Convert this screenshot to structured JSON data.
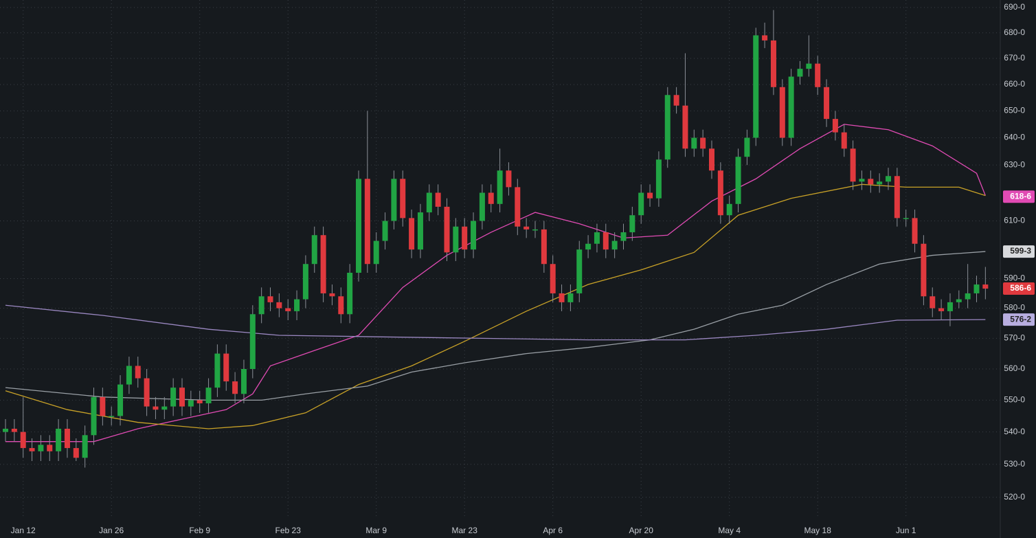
{
  "chart_data": {
    "type": "candlestick",
    "categories": [
      null,
      null,
      "Jan 12",
      null,
      null,
      null,
      null,
      null,
      null,
      null,
      null,
      null,
      "Jan 26",
      null,
      null,
      null,
      null,
      null,
      null,
      null,
      null,
      null,
      "Feb 9",
      null,
      null,
      null,
      null,
      null,
      null,
      null,
      null,
      null,
      "Feb 23",
      null,
      null,
      null,
      null,
      null,
      null,
      null,
      null,
      null,
      "Mar 9",
      null,
      null,
      null,
      null,
      null,
      null,
      null,
      null,
      null,
      "Mar 23",
      null,
      null,
      null,
      null,
      null,
      null,
      null,
      null,
      null,
      "Apr 6",
      null,
      null,
      null,
      null,
      null,
      null,
      null,
      null,
      null,
      "Apr 20",
      null,
      null,
      null,
      null,
      null,
      null,
      null,
      null,
      null,
      "May 4",
      null,
      null,
      null,
      null,
      null,
      null,
      null,
      null,
      null,
      "May 18",
      null,
      null,
      null,
      null,
      null,
      null,
      null,
      null,
      null,
      "Jun 1",
      null,
      null,
      null,
      null,
      null,
      null,
      null,
      null,
      null
    ],
    "open": [
      540,
      541,
      540,
      535,
      534,
      536,
      534,
      541,
      535,
      532,
      539,
      551,
      545,
      545,
      555,
      561,
      557,
      548,
      547,
      548,
      554,
      548,
      550,
      549,
      554,
      565,
      556,
      552,
      560,
      578,
      584,
      582,
      580,
      579,
      583,
      595,
      605,
      585,
      584,
      578,
      592,
      625,
      595,
      603,
      610,
      625,
      611,
      600,
      613,
      620,
      615,
      599,
      608,
      600,
      610,
      620,
      616,
      628,
      622,
      608,
      607,
      607,
      595,
      585,
      582,
      585,
      600,
      602,
      606,
      600,
      603,
      606,
      612,
      620,
      618,
      632,
      656,
      652,
      636,
      640,
      636,
      628,
      612,
      616,
      633,
      640,
      679,
      677,
      659,
      640,
      663,
      666,
      668,
      659,
      647,
      642,
      636,
      624,
      625,
      623,
      624,
      626,
      611,
      611,
      602,
      584,
      580,
      579,
      582,
      583,
      585,
      588
    ],
    "high": [
      544,
      544,
      551,
      538,
      539,
      539,
      544,
      544,
      538,
      542,
      554,
      554,
      548,
      558,
      564,
      564,
      560,
      551,
      551,
      557,
      557,
      553,
      553,
      557,
      568,
      568,
      559,
      563,
      581,
      587,
      587,
      585,
      583,
      586,
      598,
      608,
      608,
      588,
      587,
      595,
      628,
      650,
      606,
      613,
      628,
      628,
      614,
      616,
      623,
      623,
      618,
      611,
      611,
      613,
      623,
      623,
      636,
      631,
      625,
      611,
      610,
      610,
      598,
      588,
      588,
      603,
      605,
      609,
      609,
      606,
      609,
      615,
      623,
      623,
      635,
      659,
      659,
      672,
      643,
      643,
      639,
      631,
      619,
      636,
      643,
      682,
      684,
      689,
      662,
      666,
      669,
      679,
      671,
      662,
      650,
      645,
      639,
      628,
      628,
      627,
      629,
      629,
      614,
      614,
      605,
      587,
      583,
      585,
      586,
      595,
      591,
      594
    ],
    "low": [
      537,
      537,
      532,
      531,
      531,
      531,
      531,
      532,
      531,
      529,
      536,
      542,
      542,
      542,
      552,
      554,
      545,
      544,
      544,
      545,
      545,
      545,
      546,
      546,
      551,
      553,
      549,
      549,
      557,
      575,
      579,
      577,
      576,
      576,
      580,
      592,
      582,
      581,
      575,
      575,
      589,
      592,
      592,
      600,
      607,
      608,
      597,
      597,
      610,
      612,
      596,
      596,
      597,
      597,
      607,
      613,
      613,
      619,
      605,
      604,
      604,
      592,
      582,
      579,
      579,
      582,
      597,
      599,
      597,
      597,
      600,
      603,
      609,
      615,
      615,
      629,
      649,
      633,
      633,
      633,
      625,
      609,
      609,
      613,
      630,
      637,
      674,
      656,
      637,
      637,
      660,
      663,
      656,
      644,
      639,
      633,
      621,
      621,
      620,
      620,
      621,
      608,
      608,
      599,
      581,
      577,
      576,
      574,
      580,
      580,
      582,
      583
    ],
    "close": [
      541,
      540,
      535,
      534,
      536,
      534,
      541,
      535,
      532,
      539,
      551,
      545,
      545,
      555,
      561,
      557,
      548,
      547,
      548,
      554,
      548,
      550,
      549,
      554,
      565,
      556,
      552,
      560,
      578,
      584,
      582,
      580,
      579,
      583,
      595,
      605,
      585,
      584,
      578,
      592,
      625,
      595,
      603,
      610,
      625,
      611,
      600,
      613,
      620,
      615,
      599,
      608,
      600,
      610,
      620,
      616,
      628,
      622,
      608,
      607,
      607,
      595,
      585,
      582,
      585,
      600,
      602,
      606,
      600,
      603,
      606,
      612,
      620,
      618,
      632,
      656,
      652,
      636,
      640,
      636,
      628,
      612,
      616,
      633,
      640,
      679,
      677,
      659,
      640,
      663,
      666,
      668,
      659,
      647,
      642,
      636,
      624,
      625,
      623,
      624,
      626,
      611,
      611,
      602,
      584,
      580,
      579,
      582,
      583,
      585,
      588,
      586.6
    ],
    "up_color": "#21a544",
    "down_color": "#e0393e",
    "series": [
      {
        "color": "#e14bb4",
        "x": [
          0,
          5,
          10,
          15,
          20,
          25,
          28,
          30,
          35,
          40,
          45,
          50,
          55,
          60,
          65,
          70,
          75,
          80,
          85,
          90,
          95,
          100,
          105,
          110,
          111
        ],
        "values": [
          537,
          537,
          537,
          541,
          544,
          547,
          552,
          561,
          566,
          571,
          587,
          598,
          606,
          613,
          609,
          604,
          605,
          617,
          625,
          636,
          645,
          643,
          637,
          627,
          619
        ]
      },
      {
        "color": "#c9a227",
        "x": [
          0,
          7,
          15,
          23,
          28,
          34,
          40,
          46,
          52,
          59,
          66,
          72,
          78,
          83,
          89,
          97,
          102,
          108,
          111
        ],
        "values": [
          553,
          547,
          543,
          541,
          542,
          546,
          555,
          561,
          569,
          579,
          588,
          593,
          599,
          612,
          618,
          623,
          622,
          622,
          619
        ]
      },
      {
        "color": "#9aa0a6",
        "x": [
          0,
          11,
          23,
          29,
          34,
          41,
          46,
          52,
          59,
          66,
          73,
          78,
          83,
          88,
          93,
          99,
          105,
          111
        ],
        "values": [
          554,
          551,
          550,
          550,
          552,
          554.5,
          559,
          562,
          565,
          567,
          569.5,
          573,
          578,
          581,
          588,
          595,
          598,
          599.3
        ]
      },
      {
        "color": "#9b88c2",
        "x": [
          0,
          11,
          23,
          31,
          42,
          54,
          66,
          77,
          85,
          93,
          101,
          111
        ],
        "values": [
          581,
          577.6,
          573,
          571,
          570.5,
          570,
          569.5,
          569.5,
          571,
          573,
          576,
          576.2
        ]
      }
    ],
    "price_labels": [
      {
        "value": 618.6,
        "label": "618-6",
        "color": "#e14bb4",
        "text_color": "#ffffff"
      },
      {
        "value": 599.3,
        "label": "599-3",
        "color": "#d8dadd",
        "text_color": "#222222"
      },
      {
        "value": 586.6,
        "label": "586-6",
        "color": "#e0393e",
        "text_color": "#ffffff"
      },
      {
        "value": 576.2,
        "label": "576-2",
        "color": "#b8aee0",
        "text_color": "#222222"
      }
    ],
    "ylim": [
      514,
      693
    ],
    "log_scale": true,
    "grid": true,
    "yticks": [
      {
        "value": 520,
        "label": "520-0"
      },
      {
        "value": 530,
        "label": "530-0"
      },
      {
        "value": 540,
        "label": "540-0"
      },
      {
        "value": 550,
        "label": "550-0"
      },
      {
        "value": 560,
        "label": "560-0"
      },
      {
        "value": 570,
        "label": "570-0"
      },
      {
        "value": 580,
        "label": "580-0"
      },
      {
        "value": 590,
        "label": "590-0"
      },
      {
        "value": 610,
        "label": "610-0"
      },
      {
        "value": 630,
        "label": "630-0"
      },
      {
        "value": 640,
        "label": "640-0"
      },
      {
        "value": 650,
        "label": "650-0"
      },
      {
        "value": 660,
        "label": "660-0"
      },
      {
        "value": 670,
        "label": "670-0"
      },
      {
        "value": 680,
        "label": "680-0"
      },
      {
        "value": 690,
        "label": "690-0"
      }
    ]
  }
}
